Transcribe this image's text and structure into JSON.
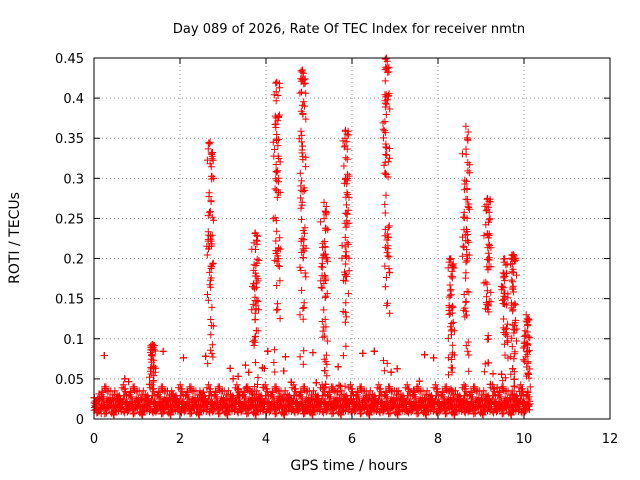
{
  "chart_data": {
    "type": "scatter",
    "title": "Day 089 of 2026, Rate Of TEC Index for receiver nmtn",
    "xlabel": "GPS time / hours",
    "ylabel": "ROTI / TECUs",
    "xlim": [
      0,
      12
    ],
    "ylim": [
      0,
      0.45
    ],
    "xticks": [
      0,
      2,
      4,
      6,
      8,
      10,
      12
    ],
    "yticks": [
      0,
      0.05,
      0.1,
      0.15,
      0.2,
      0.25,
      0.3,
      0.35,
      0.4,
      0.45
    ],
    "ytick_labels": [
      "0",
      "0.05",
      "0.1",
      "0.15",
      "0.2",
      "0.25",
      "0.3",
      "0.35",
      "0.4",
      "0.45"
    ],
    "grid": true,
    "marker": "plus",
    "color": "#ff0000",
    "data_extent_hours": [
      0,
      10.15
    ],
    "baseline": [
      0.005,
      0.045
    ],
    "peaks": [
      {
        "x": 1.35,
        "y": 0.093
      },
      {
        "x": 2.7,
        "y": 0.345
      },
      {
        "x": 3.75,
        "y": 0.232
      },
      {
        "x": 4.25,
        "y": 0.42
      },
      {
        "x": 4.85,
        "y": 0.435
      },
      {
        "x": 5.35,
        "y": 0.27
      },
      {
        "x": 5.85,
        "y": 0.36
      },
      {
        "x": 6.8,
        "y": 0.45
      },
      {
        "x": 8.3,
        "y": 0.2
      },
      {
        "x": 8.65,
        "y": 0.365
      },
      {
        "x": 9.15,
        "y": 0.275
      },
      {
        "x": 9.55,
        "y": 0.2
      },
      {
        "x": 9.75,
        "y": 0.205
      },
      {
        "x": 10.05,
        "y": 0.13
      }
    ]
  }
}
